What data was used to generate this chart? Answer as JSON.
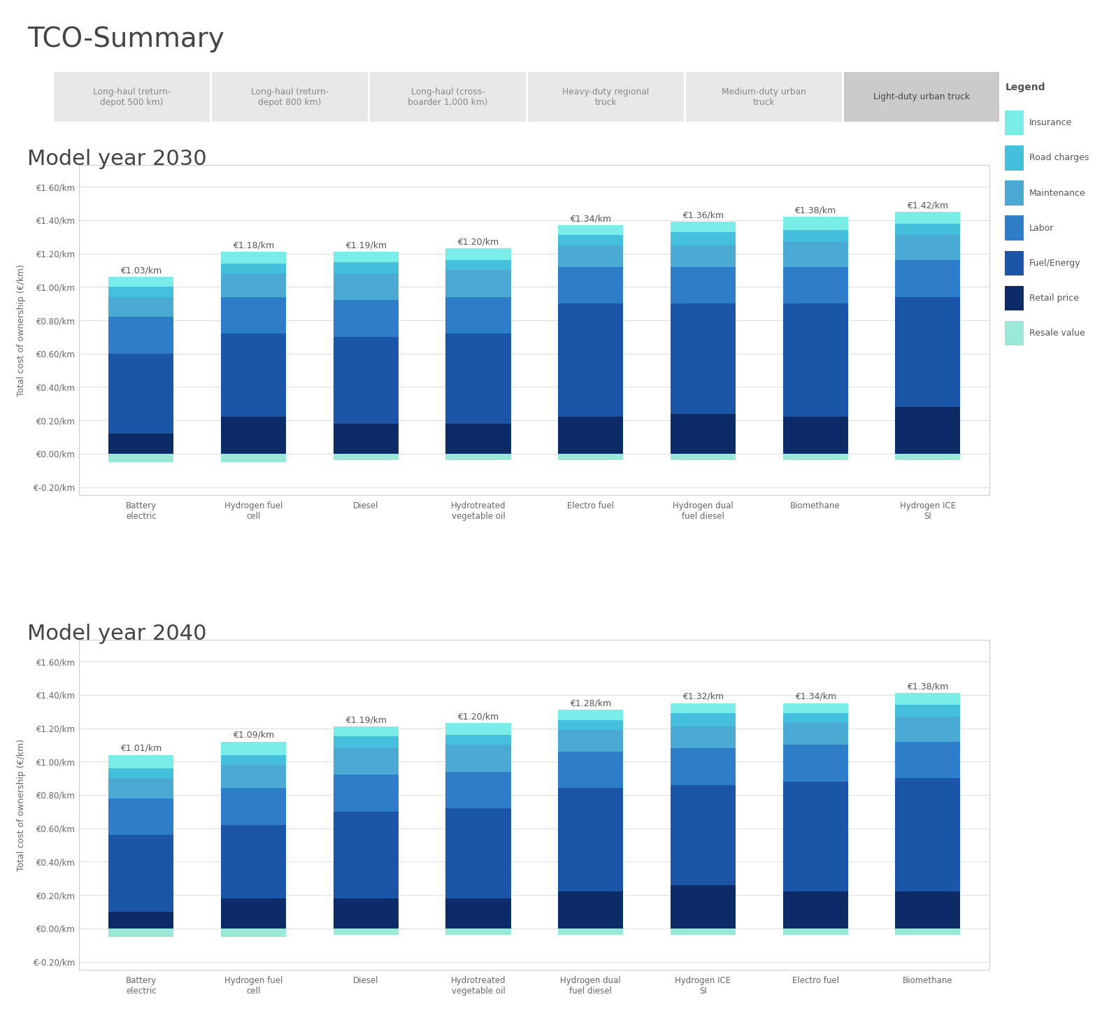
{
  "title": "TCO-Summary",
  "tab_labels": [
    "Long-haul (return-\ndepot 500 km)",
    "Long-haul (return-\ndepot 800 km)",
    "Long-haul (cross-\nboarder 1,000 km)",
    "Heavy-duty regional\ntruck",
    "Medium-duty urban\ntruck",
    "Light-duty urban truck"
  ],
  "active_tab": 5,
  "legend_items": [
    {
      "label": "Insurance",
      "color": "#7AEDE8"
    },
    {
      "label": "Road charges",
      "color": "#45C0DC"
    },
    {
      "label": "Maintenance",
      "color": "#4AAAD4"
    },
    {
      "label": "Labor",
      "color": "#2E7DC8"
    },
    {
      "label": "Fuel/Energy",
      "color": "#1B55A8"
    },
    {
      "label": "Retail price",
      "color": "#0D2B66"
    },
    {
      "label": "Resale value",
      "color": "#9AE8D8"
    }
  ],
  "year2030": {
    "subtitle": "Model year 2030",
    "categories": [
      "Battery\nelectric",
      "Hydrogen fuel\ncell",
      "Diesel",
      "Hydrotreated\nvegetable oil",
      "Electro fuel",
      "Hydrogen dual\nfuel diesel",
      "Biomethane",
      "Hydrogen ICE\nSI"
    ],
    "totals": [
      1.03,
      1.18,
      1.19,
      1.2,
      1.34,
      1.36,
      1.38,
      1.42
    ],
    "data": {
      "Resale value": [
        -0.05,
        -0.05,
        -0.04,
        -0.04,
        -0.04,
        -0.04,
        -0.04,
        -0.04
      ],
      "Retail price": [
        0.12,
        0.22,
        0.18,
        0.18,
        0.22,
        0.24,
        0.22,
        0.28
      ],
      "Fuel/Energy": [
        0.48,
        0.5,
        0.52,
        0.54,
        0.68,
        0.66,
        0.68,
        0.66
      ],
      "Labor": [
        0.22,
        0.22,
        0.22,
        0.22,
        0.22,
        0.22,
        0.22,
        0.22
      ],
      "Maintenance": [
        0.12,
        0.14,
        0.16,
        0.16,
        0.13,
        0.13,
        0.15,
        0.15
      ],
      "Road charges": [
        0.06,
        0.06,
        0.07,
        0.06,
        0.06,
        0.08,
        0.07,
        0.07
      ],
      "Insurance": [
        0.06,
        0.07,
        0.06,
        0.07,
        0.06,
        0.06,
        0.08,
        0.07
      ]
    }
  },
  "year2040": {
    "subtitle": "Model year 2040",
    "categories": [
      "Battery\nelectric",
      "Hydrogen fuel\ncell",
      "Diesel",
      "Hydrotreated\nvegetable oil",
      "Hydrogen dual\nfuel diesel",
      "Hydrogen ICE\nSI",
      "Electro fuel",
      "Biomethane"
    ],
    "totals": [
      1.01,
      1.09,
      1.19,
      1.2,
      1.28,
      1.32,
      1.34,
      1.38
    ],
    "data": {
      "Resale value": [
        -0.05,
        -0.05,
        -0.04,
        -0.04,
        -0.04,
        -0.04,
        -0.04,
        -0.04
      ],
      "Retail price": [
        0.1,
        0.18,
        0.18,
        0.18,
        0.22,
        0.26,
        0.22,
        0.22
      ],
      "Fuel/Energy": [
        0.46,
        0.44,
        0.52,
        0.54,
        0.62,
        0.6,
        0.66,
        0.68
      ],
      "Labor": [
        0.22,
        0.22,
        0.22,
        0.22,
        0.22,
        0.22,
        0.22,
        0.22
      ],
      "Maintenance": [
        0.12,
        0.14,
        0.16,
        0.16,
        0.13,
        0.13,
        0.13,
        0.15
      ],
      "Road charges": [
        0.06,
        0.06,
        0.07,
        0.06,
        0.06,
        0.08,
        0.06,
        0.07
      ],
      "Insurance": [
        0.08,
        0.08,
        0.06,
        0.07,
        0.06,
        0.06,
        0.06,
        0.07
      ]
    }
  },
  "colors": {
    "Insurance": "#7AEDE8",
    "Road charges": "#45C0DC",
    "Maintenance": "#4AAAD4",
    "Labor": "#2E7DC8",
    "Fuel/Energy": "#1B55A8",
    "Retail price": "#0D2B66",
    "Resale value": "#9AE8D8"
  },
  "stack_order": [
    "Resale value",
    "Retail price",
    "Fuel/Energy",
    "Labor",
    "Maintenance",
    "Road charges",
    "Insurance"
  ],
  "bg_color": "#FFFFFF",
  "tab_bg_inactive": "#E8E8E8",
  "tab_bg_active": "#CBCBCB",
  "grid_color": "#E0E0E0"
}
